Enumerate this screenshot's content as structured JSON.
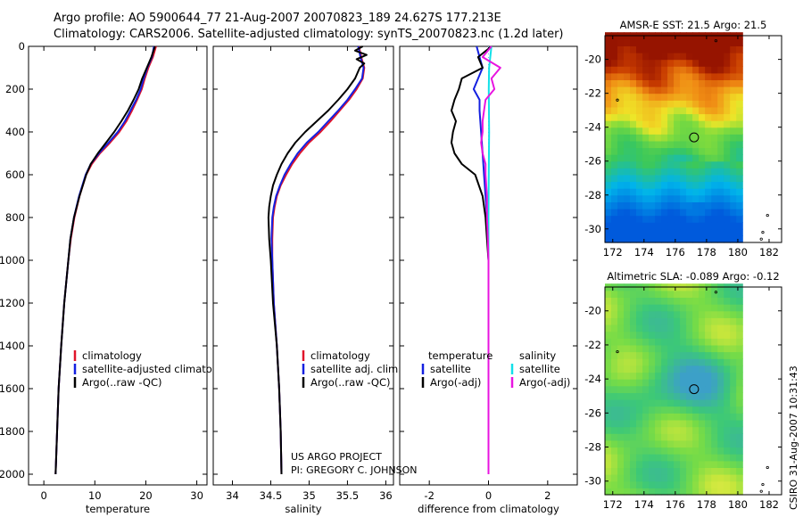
{
  "header": {
    "line1": "Argo profile: AO 5900644_77 21-Aug-2007 20070823_189 24.627S 177.213E",
    "line2": "Climatology: CARS2006. Satellite-adjusted climatology: synTS_20070823.nc (1.2d later)"
  },
  "credit": {
    "line1": "US ARGO PROJECT",
    "line2": "PI: GREGORY C. JOHNSON"
  },
  "stamp": "CSIRO 31-Aug-2007 10:31:43",
  "colors": {
    "climatology": "#e0142a",
    "satellite": "#1420e0",
    "argo": "#000000",
    "sat_salinity": "#12e0e8",
    "argo_salinity": "#e814e0",
    "dotted": "#6aa8ff"
  },
  "chart_data": [
    {
      "type": "line",
      "xlabel": "temperature",
      "ylabel": "",
      "xlim": [
        -3,
        32
      ],
      "ylim": [
        2050,
        0
      ],
      "xticks": [
        0,
        10,
        20,
        30
      ],
      "yticks": [
        0,
        200,
        400,
        600,
        800,
        1000,
        1200,
        1400,
        1600,
        1800,
        2000
      ],
      "legend": [
        "climatology",
        "satellite-adjusted climatology",
        "Argo(..raw -QC)"
      ],
      "series": [
        {
          "name": "climatology",
          "color": "#e0142a",
          "depth": [
            0,
            50,
            100,
            150,
            200,
            250,
            300,
            350,
            400,
            450,
            500,
            550,
            600,
            700,
            800,
            900,
            1000,
            1200,
            1400,
            1600,
            1800,
            2000
          ],
          "values": [
            22.0,
            21.4,
            20.5,
            19.8,
            19.2,
            18.3,
            17.3,
            16.2,
            14.8,
            13.0,
            11.0,
            9.4,
            8.3,
            7.0,
            6.0,
            5.3,
            4.8,
            4.0,
            3.4,
            2.9,
            2.6,
            2.3
          ]
        },
        {
          "name": "satellite-adjusted climatology",
          "color": "#1420e0",
          "depth": [
            0,
            50,
            100,
            150,
            200,
            250,
            300,
            350,
            400,
            450,
            500,
            550,
            600,
            700,
            800,
            900,
            1000,
            1200,
            1400,
            1600,
            1800,
            2000
          ],
          "values": [
            21.6,
            21.2,
            20.3,
            19.6,
            19.0,
            18.1,
            17.0,
            15.9,
            14.5,
            12.7,
            10.8,
            9.2,
            8.2,
            6.9,
            5.9,
            5.2,
            4.8,
            4.0,
            3.4,
            2.9,
            2.6,
            2.3
          ]
        },
        {
          "name": "Argo(..raw -QC)",
          "color": "#000000",
          "depth": [
            0,
            50,
            100,
            150,
            200,
            250,
            300,
            350,
            400,
            450,
            500,
            550,
            600,
            700,
            800,
            900,
            1000,
            1200,
            1400,
            1600,
            1800,
            2000
          ],
          "values": [
            21.8,
            21.1,
            20.2,
            19.3,
            18.6,
            17.6,
            16.5,
            15.2,
            13.8,
            12.2,
            10.6,
            9.2,
            8.3,
            7.0,
            5.9,
            5.2,
            4.8,
            4.0,
            3.4,
            2.9,
            2.6,
            2.3
          ]
        }
      ]
    },
    {
      "type": "line",
      "xlabel": "salinity",
      "ylabel": "",
      "xlim": [
        33.75,
        36.1
      ],
      "ylim": [
        2050,
        0
      ],
      "xticks": [
        34,
        34.5,
        35,
        35.5,
        36
      ],
      "legend": [
        "climatology",
        "satellite adj. clim.",
        "Argo(..raw -QC)"
      ],
      "series": [
        {
          "name": "climatology",
          "color": "#e0142a",
          "depth": [
            0,
            50,
            100,
            150,
            200,
            250,
            300,
            350,
            400,
            450,
            500,
            550,
            600,
            650,
            700,
            750,
            800,
            900,
            1000,
            1200,
            1400,
            1600,
            1800,
            2000
          ],
          "values": [
            35.65,
            35.68,
            35.72,
            35.7,
            35.62,
            35.52,
            35.4,
            35.28,
            35.15,
            35.0,
            34.88,
            34.78,
            34.7,
            34.63,
            34.58,
            34.55,
            34.53,
            34.52,
            34.52,
            34.54,
            34.58,
            34.61,
            34.63,
            34.64
          ]
        },
        {
          "name": "satellite adj. clim.",
          "color": "#1420e0",
          "depth": [
            0,
            50,
            100,
            150,
            200,
            250,
            300,
            350,
            400,
            450,
            500,
            550,
            600,
            650,
            700,
            750,
            800,
            900,
            1000,
            1200,
            1400,
            1600,
            1800,
            2000
          ],
          "values": [
            35.64,
            35.67,
            35.71,
            35.69,
            35.6,
            35.5,
            35.38,
            35.25,
            35.12,
            34.97,
            34.85,
            34.76,
            34.68,
            34.62,
            34.57,
            34.54,
            34.52,
            34.51,
            34.52,
            34.54,
            34.58,
            34.61,
            34.63,
            34.64
          ]
        },
        {
          "name": "Argo(..raw -QC)",
          "color": "#000000",
          "depth": [
            0,
            20,
            40,
            60,
            80,
            100,
            150,
            200,
            250,
            300,
            350,
            400,
            450,
            500,
            550,
            600,
            650,
            700,
            750,
            800,
            900,
            1000,
            1200,
            1400,
            1600,
            1800,
            2000
          ],
          "values": [
            35.7,
            35.6,
            35.75,
            35.62,
            35.72,
            35.66,
            35.6,
            35.5,
            35.38,
            35.25,
            35.1,
            34.95,
            34.82,
            34.72,
            34.64,
            34.58,
            34.53,
            34.5,
            34.48,
            34.47,
            34.48,
            34.5,
            34.53,
            34.58,
            34.61,
            34.63,
            34.64
          ]
        }
      ]
    },
    {
      "type": "line",
      "xlabel": "difference from climatology",
      "ylabel": "",
      "xlim": [
        -3,
        3
      ],
      "ylim": [
        2050,
        0
      ],
      "xticks": [
        -2,
        0,
        2
      ],
      "legend_temperature": {
        "title": "temperature",
        "items": [
          "satellite",
          "Argo(-adj)"
        ]
      },
      "legend_salinity": {
        "title": "salinity",
        "items": [
          "satellite",
          "Argo(-adj)"
        ]
      },
      "series": [
        {
          "name": "temperature satellite",
          "color": "#1420e0",
          "depth": [
            0,
            50,
            100,
            150,
            200,
            250,
            300,
            400,
            500,
            600,
            700,
            800,
            1000,
            1500,
            2000
          ],
          "values": [
            -0.4,
            -0.3,
            -0.2,
            -0.35,
            -0.5,
            -0.3,
            -0.3,
            -0.25,
            -0.2,
            -0.15,
            -0.1,
            -0.05,
            0,
            0,
            0
          ]
        },
        {
          "name": "temperature Argo(-adj)",
          "color": "#000000",
          "depth": [
            0,
            50,
            100,
            150,
            200,
            250,
            300,
            350,
            400,
            450,
            500,
            550,
            600,
            700,
            800,
            900,
            1000,
            1500,
            2000
          ],
          "values": [
            0.1,
            -0.35,
            -0.2,
            -0.9,
            -1.0,
            -1.15,
            -1.25,
            -1.1,
            -1.2,
            -1.25,
            -1.15,
            -0.9,
            -0.45,
            -0.2,
            -0.1,
            -0.05,
            0,
            0,
            0
          ]
        },
        {
          "name": "salinity satellite",
          "color": "#12e0e8",
          "depth": [
            0,
            100,
            200,
            400,
            600,
            800,
            1000,
            1500,
            2000
          ],
          "values": [
            0.1,
            0.02,
            0.01,
            0.02,
            0.01,
            0,
            0,
            0,
            0
          ]
        },
        {
          "name": "salinity Argo(-adj)",
          "color": "#e814e0",
          "depth": [
            0,
            50,
            100,
            150,
            200,
            250,
            300,
            350,
            400,
            450,
            500,
            550,
            600,
            700,
            800,
            900,
            1000,
            1200,
            1500,
            2000
          ],
          "values": [
            0.1,
            -0.2,
            0.4,
            0.1,
            0.2,
            -0.1,
            -0.15,
            -0.2,
            -0.2,
            -0.25,
            -0.2,
            -0.1,
            -0.1,
            -0.05,
            -0.05,
            -0.02,
            0,
            0,
            0,
            0
          ]
        }
      ]
    },
    {
      "type": "heatmap",
      "title": "AMSR-E SST: 21.5 Argo: 21.5",
      "xlim": [
        171.5,
        182.8
      ],
      "ylim": [
        -30.8,
        -18.6
      ],
      "xticks": [
        172,
        174,
        176,
        178,
        180,
        182
      ],
      "yticks": [
        -20,
        -22,
        -24,
        -26,
        -28,
        -30
      ],
      "marker": {
        "lon": 177.2,
        "lat": -24.6
      }
    },
    {
      "type": "heatmap",
      "title": "Altimetric SLA: -0.089 Argo: -0.12",
      "xlim": [
        171.5,
        182.8
      ],
      "ylim": [
        -30.8,
        -18.6
      ],
      "xticks": [
        172,
        174,
        176,
        178,
        180,
        182
      ],
      "yticks": [
        -20,
        -22,
        -24,
        -26,
        -28,
        -30
      ],
      "marker": {
        "lon": 177.2,
        "lat": -24.6
      }
    }
  ]
}
